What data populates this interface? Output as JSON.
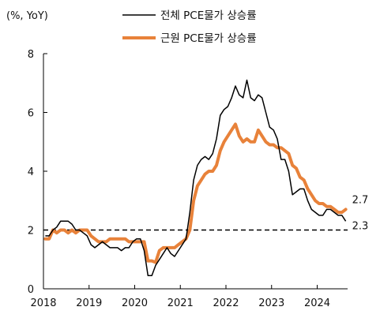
{
  "chart_data": {
    "type": "line",
    "unit_label": "(%, YoY)",
    "x_ticks": [
      "2018",
      "2019",
      "2020",
      "2021",
      "2022",
      "2023",
      "2024"
    ],
    "y_ticks": [
      "0",
      "2",
      "4",
      "6",
      "8"
    ],
    "xlim": [
      "2018-01",
      "2024-08"
    ],
    "ylim": [
      0,
      8
    ],
    "grid": false,
    "legend_position": "top",
    "reference_line": {
      "value": 2,
      "style": "dashed"
    },
    "end_labels": {
      "core": "2.7",
      "headline": "2.3"
    },
    "colors": {
      "headline": "#000000",
      "core": "#e8823a",
      "reference": "#000000"
    },
    "dates": [
      "2018-01",
      "2018-02",
      "2018-03",
      "2018-04",
      "2018-05",
      "2018-06",
      "2018-07",
      "2018-08",
      "2018-09",
      "2018-10",
      "2018-11",
      "2018-12",
      "2019-01",
      "2019-02",
      "2019-03",
      "2019-04",
      "2019-05",
      "2019-06",
      "2019-07",
      "2019-08",
      "2019-09",
      "2019-10",
      "2019-11",
      "2019-12",
      "2020-01",
      "2020-02",
      "2020-03",
      "2020-04",
      "2020-05",
      "2020-06",
      "2020-07",
      "2020-08",
      "2020-09",
      "2020-10",
      "2020-11",
      "2020-12",
      "2021-01",
      "2021-02",
      "2021-03",
      "2021-04",
      "2021-05",
      "2021-06",
      "2021-07",
      "2021-08",
      "2021-09",
      "2021-10",
      "2021-11",
      "2021-12",
      "2022-01",
      "2022-02",
      "2022-03",
      "2022-04",
      "2022-05",
      "2022-06",
      "2022-07",
      "2022-08",
      "2022-09",
      "2022-10",
      "2022-11",
      "2022-12",
      "2023-01",
      "2023-02",
      "2023-03",
      "2023-04",
      "2023-05",
      "2023-06",
      "2023-07",
      "2023-08",
      "2023-09",
      "2023-10",
      "2023-11",
      "2023-12",
      "2024-01",
      "2024-02",
      "2024-03",
      "2024-04",
      "2024-05",
      "2024-06",
      "2024-07",
      "2024-08"
    ],
    "series": [
      {
        "name": "전체 PCE물가 상승률",
        "key": "headline",
        "values": [
          1.8,
          1.8,
          2.0,
          2.1,
          2.3,
          2.3,
          2.3,
          2.2,
          2.0,
          2.0,
          1.9,
          1.8,
          1.5,
          1.4,
          1.5,
          1.6,
          1.5,
          1.4,
          1.4,
          1.4,
          1.3,
          1.4,
          1.4,
          1.6,
          1.7,
          1.7,
          1.3,
          0.45,
          0.45,
          0.8,
          1.0,
          1.2,
          1.4,
          1.2,
          1.1,
          1.3,
          1.5,
          1.7,
          2.6,
          3.7,
          4.2,
          4.4,
          4.5,
          4.4,
          4.6,
          5.1,
          5.9,
          6.1,
          6.2,
          6.5,
          6.9,
          6.6,
          6.5,
          7.1,
          6.5,
          6.4,
          6.6,
          6.5,
          6.0,
          5.5,
          5.4,
          5.1,
          4.4,
          4.4,
          4.0,
          3.2,
          3.3,
          3.4,
          3.4,
          3.0,
          2.7,
          2.6,
          2.5,
          2.5,
          2.7,
          2.7,
          2.6,
          2.5,
          2.5,
          2.3
        ]
      },
      {
        "name": "근원 PCE물가 상승률",
        "key": "core",
        "values": [
          1.7,
          1.7,
          2.0,
          1.9,
          2.0,
          2.0,
          1.9,
          2.0,
          1.9,
          2.0,
          2.0,
          2.0,
          1.8,
          1.7,
          1.6,
          1.6,
          1.6,
          1.7,
          1.7,
          1.7,
          1.7,
          1.7,
          1.6,
          1.6,
          1.6,
          1.6,
          1.6,
          0.95,
          0.95,
          0.9,
          1.3,
          1.4,
          1.4,
          1.4,
          1.4,
          1.5,
          1.6,
          1.7,
          2.0,
          3.0,
          3.5,
          3.7,
          3.9,
          4.0,
          4.0,
          4.2,
          4.7,
          5.0,
          5.2,
          5.4,
          5.6,
          5.2,
          5.0,
          5.1,
          5.0,
          5.0,
          5.4,
          5.2,
          5.0,
          4.9,
          4.9,
          4.8,
          4.8,
          4.7,
          4.6,
          4.2,
          4.1,
          3.8,
          3.7,
          3.4,
          3.2,
          3.0,
          2.9,
          2.9,
          2.8,
          2.8,
          2.7,
          2.6,
          2.6,
          2.7
        ]
      }
    ]
  }
}
